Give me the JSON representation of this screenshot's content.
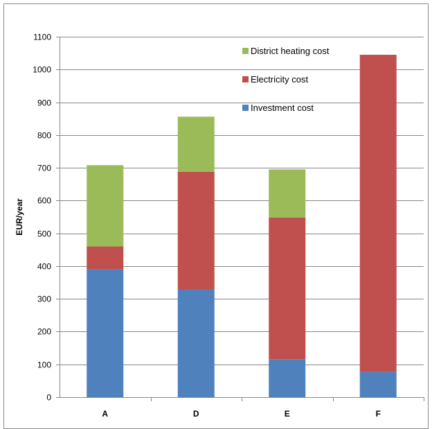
{
  "chart_data": {
    "type": "bar",
    "stacked": true,
    "categories": [
      "A",
      "D",
      "E",
      "F"
    ],
    "series": [
      {
        "name": "Investment cost",
        "color": "#4f81bd",
        "values": [
          390,
          328,
          116,
          77
        ]
      },
      {
        "name": "Electricity cost",
        "color": "#c0504d",
        "values": [
          70,
          360,
          432,
          968
        ]
      },
      {
        "name": "District heating cost",
        "color": "#9bbb59",
        "values": [
          248,
          168,
          147,
          0
        ]
      }
    ],
    "ylabel": "EUR/year",
    "xlabel": "",
    "ylim": [
      0,
      1100
    ],
    "yticks": [
      0,
      100,
      200,
      300,
      400,
      500,
      600,
      700,
      800,
      900,
      1000,
      1100
    ],
    "grid": true,
    "legend_position": "top-right",
    "legend_order": [
      "District heating cost",
      "Electricity cost",
      "Investment cost"
    ]
  }
}
